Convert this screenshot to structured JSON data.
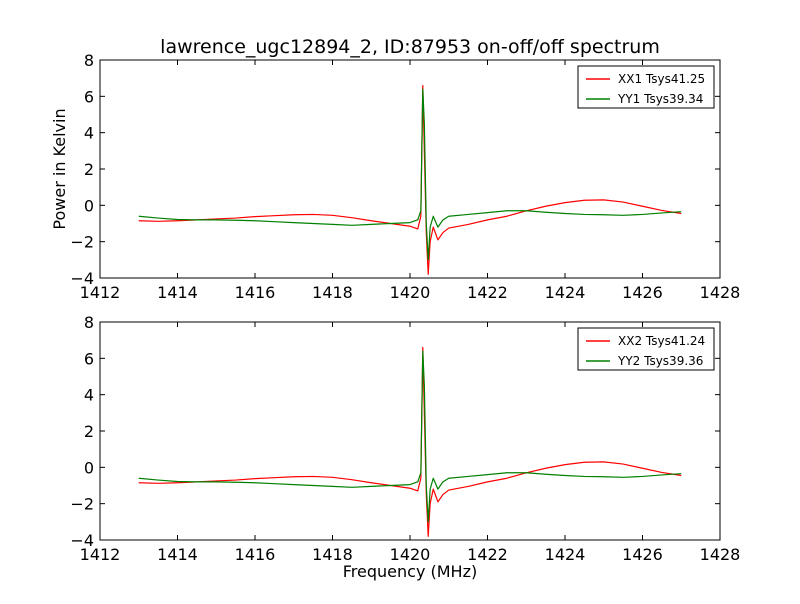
{
  "figure": {
    "title": "lawrence_ugc12894_2, ID:87953 on-off/off spectrum",
    "xlabel": "Frequency (MHz)",
    "ylabel": "Power in Kelvin"
  },
  "chart_data": [
    {
      "type": "line",
      "title": "lawrence_ugc12894_2, ID:87953 on-off/off spectrum",
      "xlabel": "",
      "ylabel": "Power in Kelvin",
      "xlim": [
        1412,
        1428
      ],
      "ylim": [
        -4,
        8
      ],
      "xticks": [
        1412,
        1414,
        1416,
        1418,
        1420,
        1422,
        1424,
        1426,
        1428
      ],
      "yticks": [
        -4,
        -2,
        0,
        2,
        4,
        6,
        8
      ],
      "legend_position": "top-right",
      "grid": false,
      "series": [
        {
          "name": "XX1 Tsys41.25",
          "color": "#ff0000",
          "points": [
            [
              1413.0,
              -0.85
            ],
            [
              1413.5,
              -0.88
            ],
            [
              1414.0,
              -0.85
            ],
            [
              1414.5,
              -0.8
            ],
            [
              1415.0,
              -0.75
            ],
            [
              1415.5,
              -0.7
            ],
            [
              1416.0,
              -0.62
            ],
            [
              1416.5,
              -0.57
            ],
            [
              1417.0,
              -0.52
            ],
            [
              1417.5,
              -0.5
            ],
            [
              1418.0,
              -0.55
            ],
            [
              1418.5,
              -0.68
            ],
            [
              1419.0,
              -0.85
            ],
            [
              1419.5,
              -1.0
            ],
            [
              1420.0,
              -1.15
            ],
            [
              1420.2,
              -1.3
            ],
            [
              1420.28,
              -0.6
            ],
            [
              1420.33,
              6.6
            ],
            [
              1420.37,
              3.0
            ],
            [
              1420.42,
              -1.5
            ],
            [
              1420.47,
              -3.8
            ],
            [
              1420.52,
              -2.0
            ],
            [
              1420.6,
              -1.2
            ],
            [
              1420.72,
              -1.9
            ],
            [
              1420.85,
              -1.5
            ],
            [
              1421.0,
              -1.25
            ],
            [
              1421.5,
              -1.05
            ],
            [
              1422.0,
              -0.8
            ],
            [
              1422.5,
              -0.6
            ],
            [
              1423.0,
              -0.3
            ],
            [
              1423.5,
              -0.05
            ],
            [
              1424.0,
              0.15
            ],
            [
              1424.5,
              0.28
            ],
            [
              1425.0,
              0.3
            ],
            [
              1425.5,
              0.18
            ],
            [
              1426.0,
              -0.05
            ],
            [
              1426.5,
              -0.28
            ],
            [
              1427.0,
              -0.45
            ]
          ]
        },
        {
          "name": "YY1 Tsys39.34",
          "color": "#008000",
          "points": [
            [
              1413.0,
              -0.6
            ],
            [
              1413.5,
              -0.7
            ],
            [
              1414.0,
              -0.78
            ],
            [
              1414.5,
              -0.8
            ],
            [
              1415.0,
              -0.8
            ],
            [
              1415.5,
              -0.82
            ],
            [
              1416.0,
              -0.85
            ],
            [
              1416.5,
              -0.9
            ],
            [
              1417.0,
              -0.95
            ],
            [
              1417.5,
              -1.0
            ],
            [
              1418.0,
              -1.05
            ],
            [
              1418.5,
              -1.1
            ],
            [
              1419.0,
              -1.05
            ],
            [
              1419.5,
              -1.0
            ],
            [
              1420.0,
              -0.95
            ],
            [
              1420.2,
              -0.8
            ],
            [
              1420.28,
              -0.3
            ],
            [
              1420.33,
              6.4
            ],
            [
              1420.37,
              4.5
            ],
            [
              1420.42,
              -1.0
            ],
            [
              1420.47,
              -3.0
            ],
            [
              1420.52,
              -1.2
            ],
            [
              1420.6,
              -0.6
            ],
            [
              1420.72,
              -1.2
            ],
            [
              1420.85,
              -0.8
            ],
            [
              1421.0,
              -0.6
            ],
            [
              1421.5,
              -0.5
            ],
            [
              1422.0,
              -0.4
            ],
            [
              1422.5,
              -0.3
            ],
            [
              1423.0,
              -0.3
            ],
            [
              1423.5,
              -0.38
            ],
            [
              1424.0,
              -0.45
            ],
            [
              1424.5,
              -0.5
            ],
            [
              1425.0,
              -0.52
            ],
            [
              1425.5,
              -0.55
            ],
            [
              1426.0,
              -0.5
            ],
            [
              1426.5,
              -0.42
            ],
            [
              1427.0,
              -0.35
            ]
          ]
        }
      ]
    },
    {
      "type": "line",
      "title": "",
      "xlabel": "Frequency (MHz)",
      "ylabel": "",
      "xlim": [
        1412,
        1428
      ],
      "ylim": [
        -4,
        8
      ],
      "xticks": [
        1412,
        1414,
        1416,
        1418,
        1420,
        1422,
        1424,
        1426,
        1428
      ],
      "yticks": [
        -4,
        -2,
        0,
        2,
        4,
        6,
        8
      ],
      "legend_position": "top-right",
      "grid": false,
      "series": [
        {
          "name": "XX2 Tsys41.24",
          "color": "#ff0000",
          "points": [
            [
              1413.0,
              -0.85
            ],
            [
              1413.5,
              -0.88
            ],
            [
              1414.0,
              -0.85
            ],
            [
              1414.5,
              -0.8
            ],
            [
              1415.0,
              -0.75
            ],
            [
              1415.5,
              -0.7
            ],
            [
              1416.0,
              -0.62
            ],
            [
              1416.5,
              -0.57
            ],
            [
              1417.0,
              -0.52
            ],
            [
              1417.5,
              -0.5
            ],
            [
              1418.0,
              -0.55
            ],
            [
              1418.5,
              -0.68
            ],
            [
              1419.0,
              -0.85
            ],
            [
              1419.5,
              -1.0
            ],
            [
              1420.0,
              -1.15
            ],
            [
              1420.2,
              -1.3
            ],
            [
              1420.28,
              -0.6
            ],
            [
              1420.33,
              6.6
            ],
            [
              1420.37,
              3.0
            ],
            [
              1420.42,
              -1.5
            ],
            [
              1420.47,
              -3.8
            ],
            [
              1420.52,
              -2.0
            ],
            [
              1420.6,
              -1.2
            ],
            [
              1420.72,
              -1.9
            ],
            [
              1420.85,
              -1.5
            ],
            [
              1421.0,
              -1.25
            ],
            [
              1421.5,
              -1.05
            ],
            [
              1422.0,
              -0.8
            ],
            [
              1422.5,
              -0.6
            ],
            [
              1423.0,
              -0.3
            ],
            [
              1423.5,
              -0.05
            ],
            [
              1424.0,
              0.15
            ],
            [
              1424.5,
              0.28
            ],
            [
              1425.0,
              0.3
            ],
            [
              1425.5,
              0.18
            ],
            [
              1426.0,
              -0.05
            ],
            [
              1426.5,
              -0.28
            ],
            [
              1427.0,
              -0.45
            ]
          ]
        },
        {
          "name": "YY2 Tsys39.36",
          "color": "#008000",
          "points": [
            [
              1413.0,
              -0.6
            ],
            [
              1413.5,
              -0.7
            ],
            [
              1414.0,
              -0.78
            ],
            [
              1414.5,
              -0.8
            ],
            [
              1415.0,
              -0.8
            ],
            [
              1415.5,
              -0.82
            ],
            [
              1416.0,
              -0.85
            ],
            [
              1416.5,
              -0.9
            ],
            [
              1417.0,
              -0.95
            ],
            [
              1417.5,
              -1.0
            ],
            [
              1418.0,
              -1.05
            ],
            [
              1418.5,
              -1.1
            ],
            [
              1419.0,
              -1.05
            ],
            [
              1419.5,
              -1.0
            ],
            [
              1420.0,
              -0.95
            ],
            [
              1420.2,
              -0.8
            ],
            [
              1420.28,
              -0.3
            ],
            [
              1420.33,
              6.4
            ],
            [
              1420.37,
              4.5
            ],
            [
              1420.42,
              -1.0
            ],
            [
              1420.47,
              -3.0
            ],
            [
              1420.52,
              -1.2
            ],
            [
              1420.6,
              -0.6
            ],
            [
              1420.72,
              -1.2
            ],
            [
              1420.85,
              -0.8
            ],
            [
              1421.0,
              -0.6
            ],
            [
              1421.5,
              -0.5
            ],
            [
              1422.0,
              -0.4
            ],
            [
              1422.5,
              -0.3
            ],
            [
              1423.0,
              -0.3
            ],
            [
              1423.5,
              -0.38
            ],
            [
              1424.0,
              -0.45
            ],
            [
              1424.5,
              -0.5
            ],
            [
              1425.0,
              -0.52
            ],
            [
              1425.5,
              -0.55
            ],
            [
              1426.0,
              -0.5
            ],
            [
              1426.5,
              -0.42
            ],
            [
              1427.0,
              -0.35
            ]
          ]
        }
      ]
    }
  ]
}
